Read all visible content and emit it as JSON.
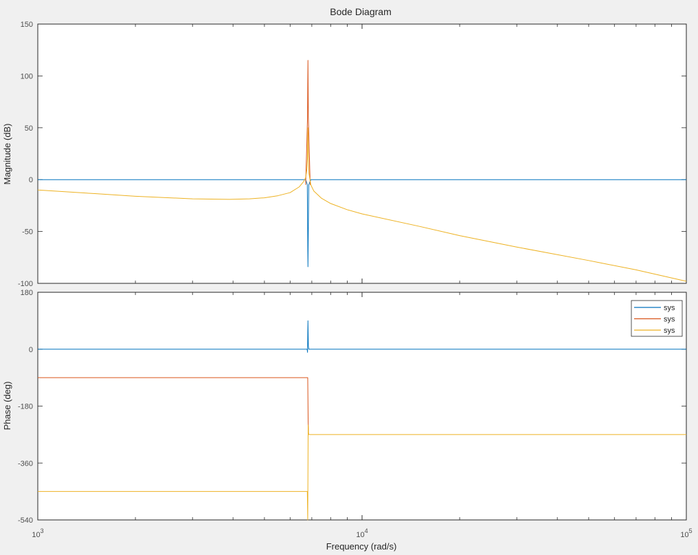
{
  "chart_data": {
    "type": "line",
    "title": "Bode Diagram",
    "xlabel": "Frequency  (rad/s)",
    "xscale": "log",
    "xlim": [
      1000,
      100000
    ],
    "x_ticks": [
      {
        "value": 1000,
        "base": "10",
        "exp": "3"
      },
      {
        "value": 10000,
        "base": "10",
        "exp": "4"
      },
      {
        "value": 100000,
        "base": "10",
        "exp": "5"
      }
    ],
    "grid": false,
    "colors": [
      "#0072bd",
      "#d95319",
      "#edb120"
    ],
    "legend": {
      "location": "top-right",
      "panel": "phase",
      "entries": [
        "sys",
        "sys",
        "sys"
      ]
    },
    "magnitude": {
      "ylabel": "Magnitude (dB)",
      "ylim": [
        -100,
        150
      ],
      "yticks": [
        -100,
        -50,
        0,
        50,
        100,
        150
      ],
      "series": [
        {
          "values": [
            [
              1000,
              0
            ],
            [
              6700,
              0
            ],
            [
              6780,
              -5
            ],
            [
              6810,
              -84
            ],
            [
              6850,
              -5
            ],
            [
              6950,
              0
            ],
            [
              100000,
              0
            ]
          ]
        },
        {
          "values": [
            [
              6700,
              -5
            ],
            [
              6790,
              60
            ],
            [
              6810,
              115
            ],
            [
              6830,
              60
            ],
            [
              6920,
              -5
            ]
          ]
        },
        {
          "values": [
            [
              1000,
              -10
            ],
            [
              1500,
              -13.5
            ],
            [
              2000,
              -16
            ],
            [
              3000,
              -18.5
            ],
            [
              3900,
              -19
            ],
            [
              4500,
              -18.5
            ],
            [
              5000,
              -17.5
            ],
            [
              5500,
              -15.5
            ],
            [
              6000,
              -12.5
            ],
            [
              6400,
              -7
            ],
            [
              6600,
              -2
            ],
            [
              6700,
              2
            ],
            [
              6760,
              10
            ],
            [
              6790,
              22
            ],
            [
              6810,
              50
            ],
            [
              6830,
              22
            ],
            [
              6860,
              6
            ],
            [
              6950,
              -5
            ],
            [
              7100,
              -11
            ],
            [
              7500,
              -18
            ],
            [
              8000,
              -23
            ],
            [
              9000,
              -29
            ],
            [
              10000,
              -33
            ],
            [
              15000,
              -45
            ],
            [
              20000,
              -54
            ],
            [
              30000,
              -65
            ],
            [
              50000,
              -78
            ],
            [
              70000,
              -87
            ],
            [
              100000,
              -98
            ]
          ]
        }
      ]
    },
    "phase": {
      "ylabel": "Phase (deg)",
      "ylim": [
        -540,
        180
      ],
      "yticks": [
        -540,
        -360,
        -180,
        0,
        180
      ],
      "series": [
        {
          "values": [
            [
              1000,
              0
            ],
            [
              6770,
              0
            ],
            [
              6790,
              -10
            ],
            [
              6810,
              90
            ],
            [
              6830,
              10
            ],
            [
              6850,
              0
            ],
            [
              100000,
              0
            ]
          ]
        },
        {
          "values": [
            [
              1000,
              -90
            ],
            [
              6800,
              -90
            ],
            [
              6820,
              -230
            ],
            [
              6840,
              -270
            ]
          ]
        },
        {
          "values": [
            [
              1000,
              -450
            ],
            [
              6780,
              -450
            ],
            [
              6800,
              -540
            ],
            [
              6820,
              -240
            ],
            [
              6840,
              -270
            ],
            [
              100000,
              -270
            ]
          ]
        }
      ]
    }
  }
}
